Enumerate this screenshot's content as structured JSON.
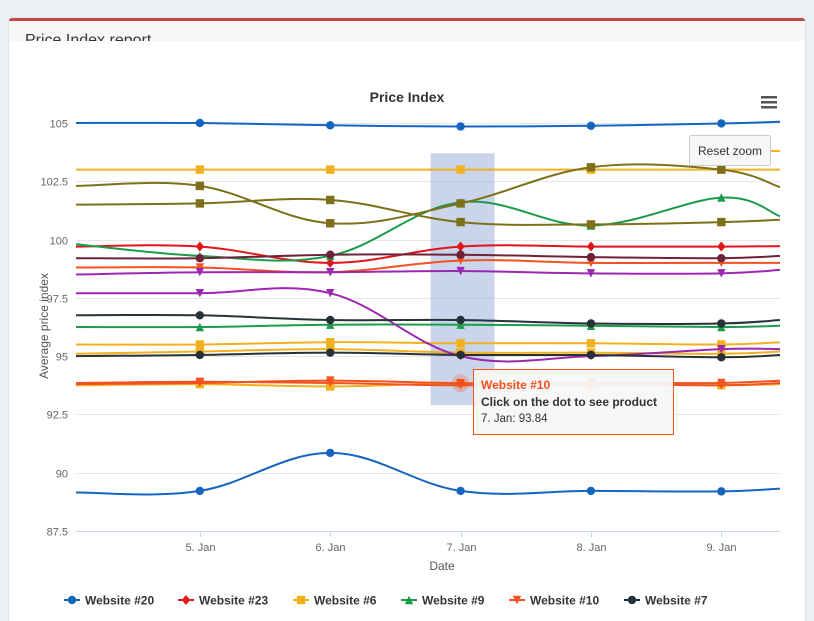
{
  "panel": {
    "title": "Price Index report"
  },
  "toolbar": {
    "reset_zoom_label": "Reset zoom",
    "menu_icon": "hamburger-menu-icon"
  },
  "tooltip": {
    "series": "Website #10",
    "hint": "Click on the dot to see product",
    "value_text": "7. Jan: 93.84",
    "accent": "#f4511e"
  },
  "chart_data": {
    "type": "line",
    "title": "Price Index",
    "xlabel": "Date",
    "ylabel": "Average price index",
    "x_ticks": [
      "5. Jan",
      "6. Jan",
      "7. Jan",
      "8. Jan",
      "9. Jan"
    ],
    "y_ticks": [
      "87.5",
      "90",
      "92.5",
      "95",
      "97.5",
      "100",
      "102.5",
      "105"
    ],
    "ylim": [
      87.5,
      105.3
    ],
    "x": [
      4.05,
      5,
      6,
      7,
      8,
      9,
      9.45
    ],
    "grid": true,
    "legend_position": "bottom",
    "highlight": {
      "x": 7,
      "label": "7. Jan"
    },
    "series": [
      {
        "name": "Website #20",
        "color": "#1565c0",
        "marker": "circle",
        "values": [
          89.15,
          89.22,
          90.85,
          89.22,
          89.22,
          89.2,
          89.32
        ]
      },
      {
        "name": "",
        "color": "#1565c0",
        "marker": "circle",
        "values": [
          105.0,
          105.0,
          104.9,
          104.85,
          104.88,
          104.98,
          105.05
        ]
      },
      {
        "name": "Website #23",
        "color": "#e0161b",
        "marker": "diamond",
        "values": [
          99.7,
          99.7,
          99.0,
          99.7,
          99.7,
          99.7,
          99.72
        ]
      },
      {
        "name": "Website #6",
        "color": "#f2b01e",
        "marker": "square",
        "values": [
          103.0,
          103.0,
          103.0,
          103.0,
          103.0,
          103.0,
          103.0
        ]
      },
      {
        "name": "",
        "color": "#f2b01e",
        "marker": "square",
        "values": [
          95.5,
          95.5,
          95.6,
          95.55,
          95.55,
          95.5,
          95.6
        ]
      },
      {
        "name": "",
        "color": "#f2b01e",
        "marker": "square",
        "values": [
          95.1,
          95.2,
          95.3,
          95.15,
          95.15,
          95.1,
          95.2
        ]
      },
      {
        "name": "",
        "color": "#f2b01e",
        "marker": "square",
        "values": [
          93.75,
          93.8,
          93.7,
          93.84,
          93.8,
          93.75,
          93.8
        ]
      },
      {
        "name": "Website #9",
        "color": "#1a9c4a",
        "marker": "triangle",
        "values": [
          99.8,
          99.3,
          99.3,
          101.6,
          100.6,
          101.8,
          101.0
        ]
      },
      {
        "name": "",
        "color": "#1a9c4a",
        "marker": "triangle",
        "values": [
          96.25,
          96.25,
          96.35,
          96.35,
          96.3,
          96.25,
          96.3
        ]
      },
      {
        "name": "Website #10",
        "color": "#f4511e",
        "marker": "triangle-down",
        "values": [
          93.8,
          93.85,
          93.95,
          93.84,
          93.8,
          93.75,
          93.85
        ]
      },
      {
        "name": "",
        "color": "#f4511e",
        "marker": "triangle-down",
        "values": [
          98.8,
          98.8,
          98.6,
          99.1,
          99.0,
          99.0,
          99.0
        ]
      },
      {
        "name": "",
        "color": "#f4511e",
        "marker": "triangle-down",
        "values": [
          93.85,
          93.9,
          93.85,
          93.75,
          93.85,
          93.85,
          93.95
        ]
      },
      {
        "name": "",
        "color": "#9c27b0",
        "marker": "triangle-down",
        "values": [
          97.7,
          97.7,
          97.7,
          95.0,
          95.0,
          95.3,
          95.3
        ]
      },
      {
        "name": "",
        "color": "#9c27b0",
        "marker": "triangle-down",
        "values": [
          98.5,
          98.6,
          98.6,
          98.65,
          98.55,
          98.55,
          98.7
        ]
      },
      {
        "name": "Website #7",
        "color": "#263238",
        "marker": "circle",
        "values": [
          95.0,
          95.05,
          95.15,
          95.05,
          95.05,
          94.95,
          95.05
        ]
      },
      {
        "name": "",
        "color": "#263238",
        "marker": "circle",
        "values": [
          96.75,
          96.75,
          96.55,
          96.55,
          96.4,
          96.4,
          96.55
        ]
      },
      {
        "name": "",
        "color": "#6d2338",
        "marker": "circle",
        "values": [
          99.2,
          99.2,
          99.35,
          99.35,
          99.25,
          99.2,
          99.3
        ]
      },
      {
        "name": "",
        "color": "#7d7019",
        "marker": "square",
        "values": [
          102.3,
          102.3,
          100.7,
          101.55,
          103.1,
          103.0,
          102.25
        ]
      },
      {
        "name": "",
        "color": "#7d7019",
        "marker": "square",
        "values": [
          101.5,
          101.55,
          101.7,
          100.75,
          100.65,
          100.75,
          100.85
        ]
      },
      {
        "name": "",
        "color": "#f2b01e",
        "marker": "none",
        "values": [
          null,
          null,
          null,
          null,
          null,
          103.8,
          103.8
        ]
      }
    ]
  }
}
